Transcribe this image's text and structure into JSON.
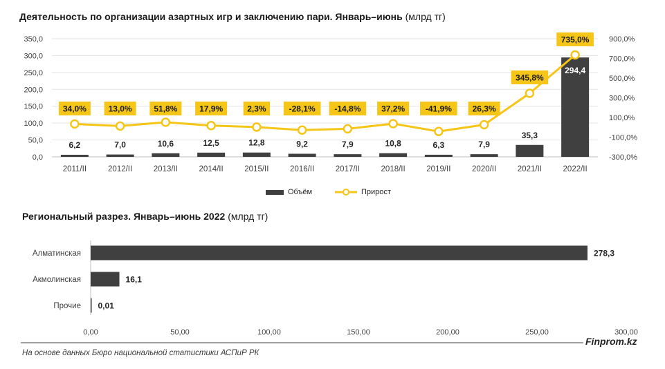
{
  "chart_data": [
    {
      "type": "bar+line",
      "title": "Деятельность по организации азартных игр и заключению пари. Январь–июнь",
      "unit": "(млрд тг)",
      "categories": [
        "2011/II",
        "2012/II",
        "2013/II",
        "2014/II",
        "2015/II",
        "2016/II",
        "2017/II",
        "2018/II",
        "2019/II",
        "2020/II",
        "2021/II",
        "2022/II"
      ],
      "series": [
        {
          "name": "Объём",
          "kind": "bar",
          "color": "#404040",
          "values": [
            6.2,
            7.0,
            10.6,
            12.5,
            12.8,
            9.2,
            7.9,
            10.8,
            6.3,
            7.9,
            35.3,
            294.4
          ],
          "labels": [
            "6,2",
            "7,0",
            "10,6",
            "12,5",
            "12,8",
            "9,2",
            "7,9",
            "10,8",
            "6,3",
            "7,9",
            "35,3",
            "294,4"
          ]
        },
        {
          "name": "Прирост",
          "kind": "line",
          "axis": "right",
          "color": "#f5c518",
          "values": [
            34.0,
            13.0,
            51.8,
            17.9,
            2.3,
            -28.1,
            -14.8,
            37.2,
            -41.9,
            26.3,
            345.8,
            735.0
          ],
          "labels": [
            "34,0%",
            "13,0%",
            "51,8%",
            "17,9%",
            "2,3%",
            "-28,1%",
            "-14,8%",
            "37,2%",
            "-41,9%",
            "26,3%",
            "345,8%",
            "735,0%"
          ]
        }
      ],
      "y_left": {
        "range": [
          0,
          350
        ],
        "ticks": [
          "0,0",
          "50,0",
          "100,0",
          "150,0",
          "200,0",
          "250,0",
          "300,0",
          "350,0"
        ]
      },
      "y_right": {
        "range": [
          -300,
          900
        ],
        "ticks": [
          "-300,0%",
          "-100,0%",
          "100,0%",
          "300,0%",
          "500,0%",
          "700,0%",
          "900,0%"
        ]
      },
      "grid": true,
      "legend": "bottom"
    },
    {
      "type": "bar",
      "orientation": "horizontal",
      "title": "Региональный разрез. Январь–июнь 2022",
      "unit": "(млрд тг)",
      "categories": [
        "Алматинская",
        "Акмолинская",
        "Прочие"
      ],
      "values": [
        278.3,
        16.1,
        0.01
      ],
      "labels": [
        "278,3",
        "16,1",
        "0,01"
      ],
      "color": "#404040",
      "x_axis": {
        "range": [
          0,
          300
        ],
        "ticks": [
          "0,00",
          "50,00",
          "100,00",
          "150,00",
          "200,00",
          "250,00",
          "300,00"
        ]
      },
      "grid": false
    }
  ],
  "footer": {
    "source": "На основе данных Бюро национальной статистики АСПиР РК",
    "brand": "Finprom.kz"
  }
}
